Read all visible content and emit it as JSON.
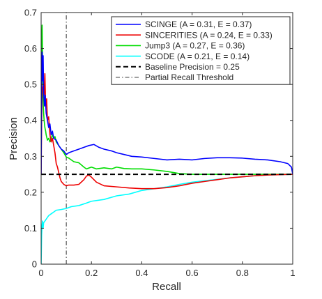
{
  "chart_data": {
    "type": "line",
    "xlabel": "Recall",
    "ylabel": "Precision",
    "xlim": [
      0,
      1
    ],
    "ylim": [
      0,
      0.7
    ],
    "xticks": [
      "0",
      "0.2",
      "0.4",
      "0.6",
      "0.8",
      "1"
    ],
    "yticks": [
      "0",
      "0.1",
      "0.2",
      "0.3",
      "0.4",
      "0.5",
      "0.6",
      "0.7"
    ],
    "grid": false,
    "legend_position": "top-right",
    "series": [
      {
        "name": "SCINGE (A = 0.31, E = 0.37)",
        "color": "#0000ff",
        "points": [
          [
            0,
            0.25
          ],
          [
            0.002,
            0.52
          ],
          [
            0.004,
            0.59
          ],
          [
            0.006,
            0.51
          ],
          [
            0.008,
            0.58
          ],
          [
            0.01,
            0.48
          ],
          [
            0.013,
            0.44
          ],
          [
            0.016,
            0.47
          ],
          [
            0.02,
            0.42
          ],
          [
            0.025,
            0.4
          ],
          [
            0.03,
            0.38
          ],
          [
            0.035,
            0.39
          ],
          [
            0.04,
            0.36
          ],
          [
            0.045,
            0.37
          ],
          [
            0.05,
            0.35
          ],
          [
            0.06,
            0.345
          ],
          [
            0.07,
            0.33
          ],
          [
            0.08,
            0.32
          ],
          [
            0.09,
            0.315
          ],
          [
            0.1,
            0.305
          ],
          [
            0.11,
            0.31
          ],
          [
            0.13,
            0.315
          ],
          [
            0.15,
            0.32
          ],
          [
            0.17,
            0.325
          ],
          [
            0.19,
            0.33
          ],
          [
            0.21,
            0.333
          ],
          [
            0.23,
            0.325
          ],
          [
            0.25,
            0.32
          ],
          [
            0.28,
            0.315
          ],
          [
            0.3,
            0.31
          ],
          [
            0.33,
            0.305
          ],
          [
            0.36,
            0.3
          ],
          [
            0.4,
            0.298
          ],
          [
            0.45,
            0.294
          ],
          [
            0.5,
            0.29
          ],
          [
            0.55,
            0.292
          ],
          [
            0.6,
            0.29
          ],
          [
            0.65,
            0.294
          ],
          [
            0.7,
            0.296
          ],
          [
            0.75,
            0.296
          ],
          [
            0.8,
            0.295
          ],
          [
            0.85,
            0.292
          ],
          [
            0.9,
            0.29
          ],
          [
            0.95,
            0.285
          ],
          [
            0.98,
            0.28
          ],
          [
            0.995,
            0.27
          ],
          [
            1.0,
            0.25
          ]
        ]
      },
      {
        "name": "SINCERITIES (A = 0.24, E = 0.33)",
        "color": "#ee0000",
        "points": [
          [
            0,
            0.25
          ],
          [
            0.003,
            0.46
          ],
          [
            0.006,
            0.49
          ],
          [
            0.009,
            0.5
          ],
          [
            0.012,
            0.47
          ],
          [
            0.015,
            0.53
          ],
          [
            0.018,
            0.44
          ],
          [
            0.022,
            0.46
          ],
          [
            0.025,
            0.4
          ],
          [
            0.03,
            0.41
          ],
          [
            0.035,
            0.36
          ],
          [
            0.04,
            0.34
          ],
          [
            0.045,
            0.35
          ],
          [
            0.05,
            0.33
          ],
          [
            0.055,
            0.31
          ],
          [
            0.06,
            0.28
          ],
          [
            0.065,
            0.27
          ],
          [
            0.07,
            0.255
          ],
          [
            0.075,
            0.24
          ],
          [
            0.08,
            0.23
          ],
          [
            0.09,
            0.222
          ],
          [
            0.1,
            0.218
          ],
          [
            0.11,
            0.22
          ],
          [
            0.13,
            0.22
          ],
          [
            0.15,
            0.222
          ],
          [
            0.17,
            0.235
          ],
          [
            0.18,
            0.245
          ],
          [
            0.19,
            0.248
          ],
          [
            0.2,
            0.242
          ],
          [
            0.22,
            0.228
          ],
          [
            0.25,
            0.218
          ],
          [
            0.3,
            0.215
          ],
          [
            0.35,
            0.212
          ],
          [
            0.4,
            0.21
          ],
          [
            0.45,
            0.21
          ],
          [
            0.5,
            0.213
          ],
          [
            0.55,
            0.218
          ],
          [
            0.6,
            0.225
          ],
          [
            0.65,
            0.23
          ],
          [
            0.7,
            0.235
          ],
          [
            0.75,
            0.24
          ],
          [
            0.8,
            0.243
          ],
          [
            0.85,
            0.246
          ],
          [
            0.9,
            0.248
          ],
          [
            0.95,
            0.249
          ],
          [
            1.0,
            0.25
          ]
        ]
      },
      {
        "name": "Jump3 (A = 0.27, E = 0.36)",
        "color": "#00dd00",
        "points": [
          [
            0,
            0.25
          ],
          [
            0.002,
            0.6
          ],
          [
            0.004,
            0.665
          ],
          [
            0.006,
            0.55
          ],
          [
            0.008,
            0.45
          ],
          [
            0.01,
            0.42
          ],
          [
            0.012,
            0.4
          ],
          [
            0.015,
            0.38
          ],
          [
            0.018,
            0.37
          ],
          [
            0.02,
            0.36
          ],
          [
            0.025,
            0.345
          ],
          [
            0.03,
            0.35
          ],
          [
            0.035,
            0.34
          ],
          [
            0.04,
            0.35
          ],
          [
            0.045,
            0.36
          ],
          [
            0.05,
            0.35
          ],
          [
            0.055,
            0.355
          ],
          [
            0.06,
            0.34
          ],
          [
            0.07,
            0.33
          ],
          [
            0.08,
            0.32
          ],
          [
            0.09,
            0.31
          ],
          [
            0.1,
            0.298
          ],
          [
            0.11,
            0.295
          ],
          [
            0.13,
            0.285
          ],
          [
            0.15,
            0.282
          ],
          [
            0.17,
            0.27
          ],
          [
            0.18,
            0.265
          ],
          [
            0.2,
            0.27
          ],
          [
            0.22,
            0.265
          ],
          [
            0.25,
            0.268
          ],
          [
            0.28,
            0.265
          ],
          [
            0.3,
            0.27
          ],
          [
            0.33,
            0.266
          ],
          [
            0.36,
            0.265
          ],
          [
            0.4,
            0.265
          ],
          [
            0.45,
            0.262
          ],
          [
            0.5,
            0.258
          ],
          [
            0.55,
            0.252
          ],
          [
            0.6,
            0.25
          ],
          [
            0.65,
            0.25
          ],
          [
            0.7,
            0.25
          ],
          [
            0.8,
            0.25
          ],
          [
            0.9,
            0.25
          ],
          [
            1.0,
            0.25
          ]
        ]
      },
      {
        "name": "SCODE (A = 0.21, E = 0.14)",
        "color": "#00ffff",
        "points": [
          [
            0,
            0.0
          ],
          [
            0.002,
            0.08
          ],
          [
            0.004,
            0.11
          ],
          [
            0.006,
            0.12
          ],
          [
            0.008,
            0.1
          ],
          [
            0.01,
            0.115
          ],
          [
            0.015,
            0.12
          ],
          [
            0.02,
            0.125
          ],
          [
            0.025,
            0.13
          ],
          [
            0.03,
            0.135
          ],
          [
            0.04,
            0.14
          ],
          [
            0.05,
            0.145
          ],
          [
            0.06,
            0.15
          ],
          [
            0.08,
            0.152
          ],
          [
            0.1,
            0.155
          ],
          [
            0.12,
            0.16
          ],
          [
            0.15,
            0.163
          ],
          [
            0.18,
            0.17
          ],
          [
            0.2,
            0.175
          ],
          [
            0.25,
            0.18
          ],
          [
            0.3,
            0.19
          ],
          [
            0.35,
            0.195
          ],
          [
            0.4,
            0.205
          ],
          [
            0.45,
            0.21
          ],
          [
            0.5,
            0.215
          ],
          [
            0.55,
            0.222
          ],
          [
            0.6,
            0.228
          ],
          [
            0.65,
            0.232
          ],
          [
            0.7,
            0.236
          ],
          [
            0.75,
            0.24
          ],
          [
            0.8,
            0.243
          ],
          [
            0.85,
            0.246
          ],
          [
            0.9,
            0.248
          ],
          [
            0.95,
            0.249
          ],
          [
            1.0,
            0.25
          ]
        ]
      },
      {
        "name": "Baseline Precision = 0.25",
        "color": "#000000",
        "dash": "dashed",
        "points": [
          [
            0,
            0.25
          ],
          [
            1,
            0.25
          ]
        ]
      },
      {
        "name": "Partial Recall Threshold",
        "color": "#000000",
        "dash": "dashdot",
        "points": [
          [
            0.1,
            0
          ],
          [
            0.1,
            0.7
          ]
        ]
      }
    ]
  }
}
